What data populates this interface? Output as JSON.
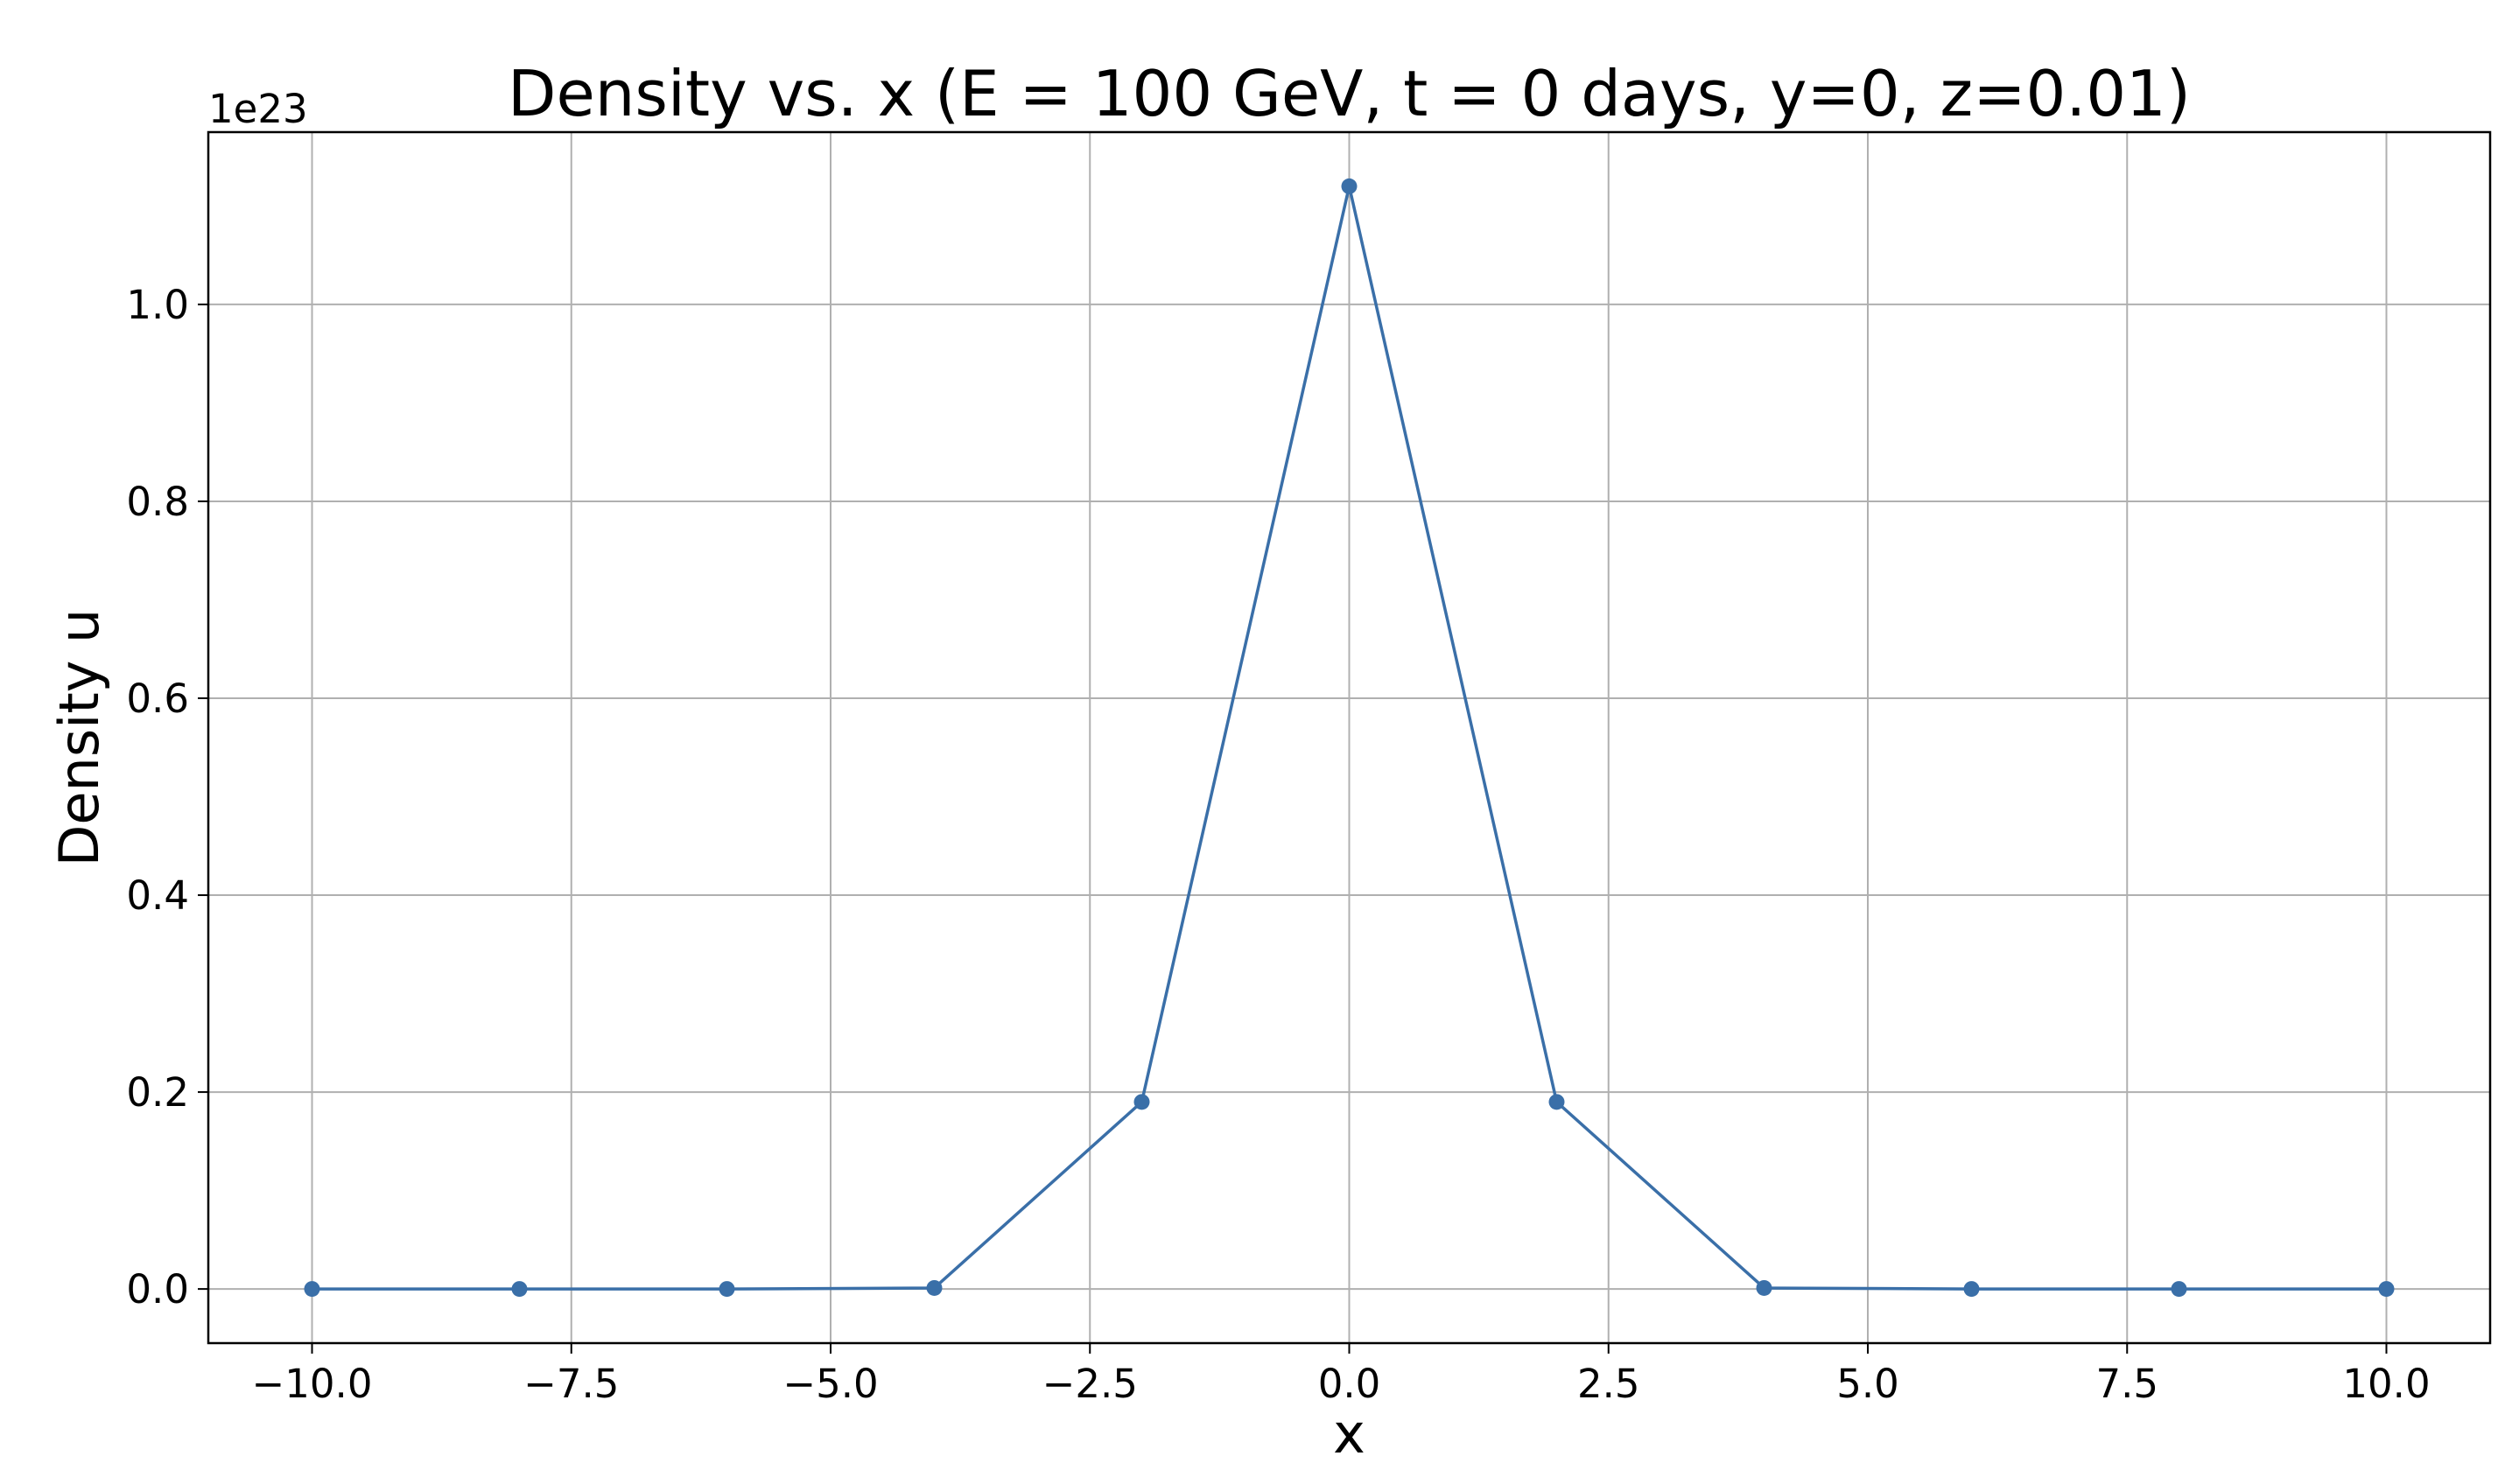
{
  "chart_data": {
    "type": "line",
    "title": "Density vs. x (E = 100 GeV, t = 0 days, y=0, z=0.01)",
    "xlabel": "x",
    "ylabel": "Density u",
    "y_offset_label": "1e23",
    "y_scale_factor": 1e+23,
    "xlim": [
      -11,
      11
    ],
    "ylim": [
      -0.055,
      1.175
    ],
    "x_ticks": [
      -10,
      -7.5,
      -5,
      -2.5,
      0,
      2.5,
      5,
      7.5,
      10
    ],
    "x_tick_labels": [
      "−10.0",
      "−7.5",
      "−5.0",
      "−2.5",
      "0.0",
      "2.5",
      "5.0",
      "7.5",
      "10.0"
    ],
    "y_ticks": [
      0,
      0.2,
      0.4,
      0.6,
      0.8,
      1.0
    ],
    "y_tick_labels": [
      "0.0",
      "0.2",
      "0.4",
      "0.6",
      "0.8",
      "1.0"
    ],
    "grid": true,
    "series": [
      {
        "color": "#3a6fa8",
        "marker": "circle",
        "x": [
          -10,
          -8,
          -6,
          -4,
          -2,
          0,
          2,
          4,
          6,
          8,
          10
        ],
        "y": [
          0,
          0,
          0,
          0.001,
          0.19,
          1.12,
          0.19,
          0.001,
          0,
          0,
          0
        ]
      }
    ]
  }
}
